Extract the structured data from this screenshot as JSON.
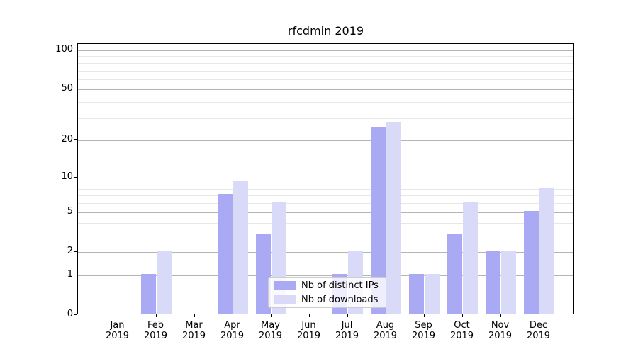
{
  "title": "rfcdmin 2019",
  "chart_data": {
    "type": "bar",
    "title": "rfcdmin 2019",
    "categories": [
      "Jan 2019",
      "Feb 2019",
      "Mar 2019",
      "Apr 2019",
      "May 2019",
      "Jun 2019",
      "Jul 2019",
      "Aug 2019",
      "Sep 2019",
      "Oct 2019",
      "Nov 2019",
      "Dec 2019"
    ],
    "series": [
      {
        "name": "Nb of distinct IPs",
        "color": "#a9a9f4",
        "values": [
          0,
          1,
          0,
          7,
          3,
          0,
          1,
          25,
          1,
          3,
          2,
          5
        ]
      },
      {
        "name": "Nb of downloads",
        "color": "#d9d9f8",
        "values": [
          0,
          2,
          0,
          9,
          6,
          0,
          2,
          27,
          1,
          6,
          2,
          8
        ]
      }
    ],
    "yscale": "log10(1+v)",
    "yticks_major": [
      0,
      1,
      2,
      5,
      10,
      20,
      50,
      100
    ],
    "yticks_minor": [
      3,
      4,
      6,
      7,
      8,
      9,
      30,
      40,
      60,
      70,
      80,
      90
    ],
    "ylim": [
      0,
      112
    ],
    "grid": "horizontal",
    "legend_position": "lower center"
  },
  "colors": {
    "grid_major": "#b4b4b4",
    "grid_minor": "#e7e7e7",
    "axis": "#000000",
    "legend_border": "#cccccc",
    "background": "#ffffff"
  }
}
